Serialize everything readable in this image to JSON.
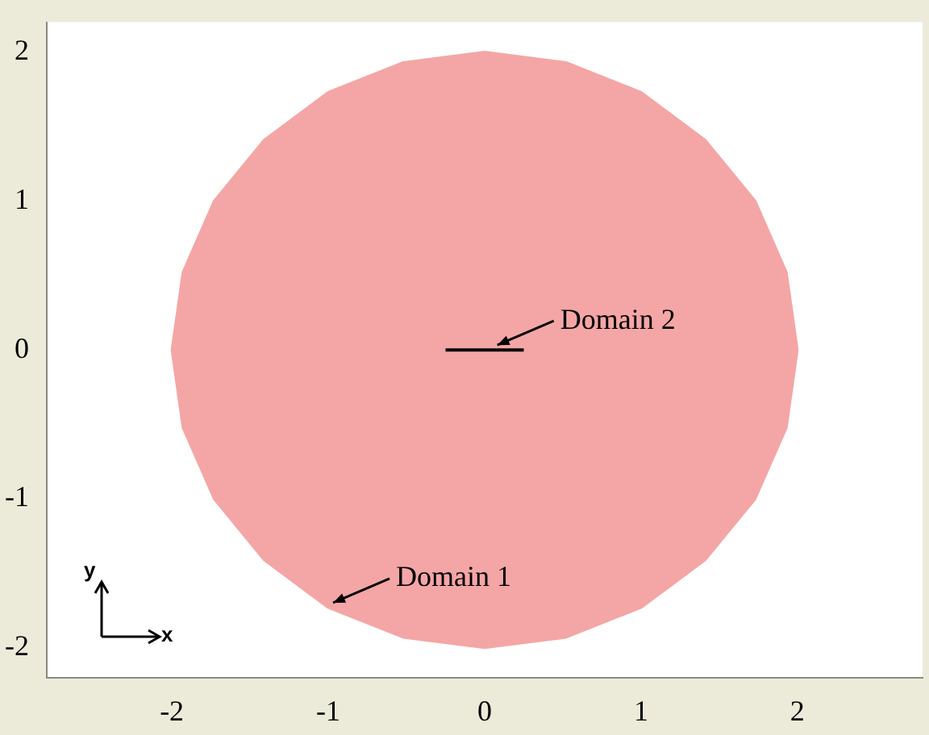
{
  "chart_data": {
    "type": "line",
    "xlim": [
      -2.8,
      2.8
    ],
    "xticks": [
      -2,
      -1,
      0,
      1,
      2
    ],
    "ylim": [
      -2.2,
      2.2
    ],
    "yticks": [
      -2,
      -1,
      0,
      1,
      2
    ],
    "grid": false,
    "legend": false,
    "marker": "none",
    "series": [
      {
        "type": "area",
        "color": "#f4a6a6",
        "x": [
          2,
          1.93,
          1.73,
          1.41,
          1,
          0.52,
          0,
          -0.52,
          -1,
          -1.41,
          -1.73,
          -1.93,
          -2,
          -1.93,
          -1.73,
          -1.41,
          -1,
          -0.52,
          0,
          0.52,
          1,
          1.41,
          1.73,
          1.93,
          2
        ],
        "values": [
          0,
          0.52,
          1,
          1.41,
          1.73,
          1.93,
          2,
          1.93,
          1.73,
          1.41,
          1,
          0.52,
          0,
          -0.52,
          -1,
          -1.41,
          -1.73,
          -1.93,
          -2,
          -1.93,
          -1.73,
          -1.41,
          -1,
          -0.52,
          0
        ]
      },
      {
        "type": "line",
        "color": "#000000",
        "x": [
          -0.25,
          0.25
        ],
        "values": [
          0,
          0
        ]
      }
    ],
    "annotations": [
      {
        "text": "Domain 2",
        "x": 0.05,
        "y": 0
      },
      {
        "text": "Domain 1",
        "x": -1,
        "y": -1.73
      },
      "y",
      "x"
    ]
  }
}
